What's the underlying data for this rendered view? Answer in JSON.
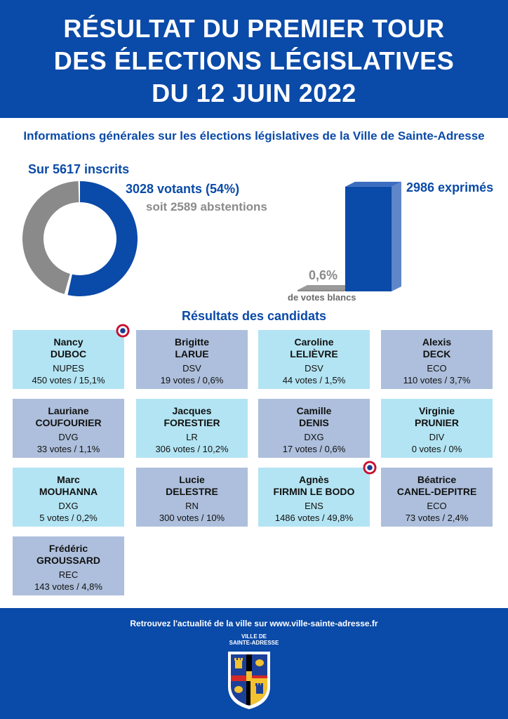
{
  "header": {
    "line1": "RÉSULTAT DU PREMIER TOUR",
    "line2": "DES ÉLECTIONS LÉGISLATIVES",
    "line3": "DU 12 JUIN 2022"
  },
  "colors": {
    "primary": "#0a4aa8",
    "light_card": "#b3e4f3",
    "grey_card": "#adbfdc",
    "grey": "#8a8a8a"
  },
  "general": {
    "title": "Informations générales sur les élections législatives de la Ville de Sainte-Adresse",
    "inscrits_label": "Sur 5617 inscrits",
    "votants_label": "3028 votants (54%)",
    "abstentions_label": "soit 2589 abstentions",
    "exprimes_label": "2986 exprimés",
    "blancs_pct": "0,6%",
    "blancs_label": "de votes blancs"
  },
  "chart_data": [
    {
      "type": "pie",
      "title": "Sur 5617 inscrits",
      "categories": [
        "votants",
        "abstentions"
      ],
      "values": [
        3028,
        2589
      ],
      "colors": [
        "#0a4aa8",
        "#8a8a8a"
      ]
    },
    {
      "type": "bar",
      "categories": [
        "votes blancs",
        "exprimés"
      ],
      "values": [
        0.6,
        99.4
      ],
      "colors": [
        "#8a8a8a",
        "#0a4aa8"
      ]
    }
  ],
  "results": {
    "title": "Résultats des candidats",
    "candidates": [
      {
        "first": "Nancy",
        "last": "DUBOC",
        "party": "NUPES",
        "votes": "450 votes / 15,1%",
        "qualified": true
      },
      {
        "first": "Brigitte",
        "last": "LARUE",
        "party": "DSV",
        "votes": "19 votes / 0,6%",
        "qualified": false
      },
      {
        "first": "Caroline",
        "last": "LELIÈVRE",
        "party": "DSV",
        "votes": "44 votes / 1,5%",
        "qualified": false
      },
      {
        "first": "Alexis",
        "last": "DECK",
        "party": "ECO",
        "votes": "110 votes / 3,7%",
        "qualified": false
      },
      {
        "first": "Lauriane",
        "last": "COUFOURIER",
        "party": "DVG",
        "votes": "33 votes / 1,1%",
        "qualified": false
      },
      {
        "first": "Jacques",
        "last": "FORESTIER",
        "party": "LR",
        "votes": "306 votes / 10,2%",
        "qualified": false
      },
      {
        "first": "Camille",
        "last": "DENIS",
        "party": "DXG",
        "votes": "17 votes / 0,6%",
        "qualified": false
      },
      {
        "first": "Virginie",
        "last": "PRUNIER",
        "party": "DIV",
        "votes": "0 votes / 0%",
        "qualified": false
      },
      {
        "first": "Marc",
        "last": "MOUHANNA",
        "party": "DXG",
        "votes": "5 votes / 0,2%",
        "qualified": false
      },
      {
        "first": "Lucie",
        "last": "DELESTRE",
        "party": "RN",
        "votes": "300 votes / 10%",
        "qualified": false
      },
      {
        "first": "Agnès",
        "last": "FIRMIN LE BODO",
        "party": "ENS",
        "votes": "1486 votes / 49,8%",
        "qualified": true
      },
      {
        "first": "Béatrice",
        "last": "CANEL-DEPITRE",
        "party": "ECO",
        "votes": "73 votes / 2,4%",
        "qualified": false
      },
      {
        "first": "Frédéric",
        "last": "GROUSSARD",
        "party": "REC",
        "votes": "143 votes / 4,8%",
        "qualified": false
      }
    ]
  },
  "footer": {
    "message": "Retrouvez l'actualité de la ville sur www.ville-sainte-adresse.fr",
    "ville_line1": "VILLE DE",
    "ville_line2": "SAINTE-ADRESSE",
    "crest_icon": "city-crest-icon"
  }
}
